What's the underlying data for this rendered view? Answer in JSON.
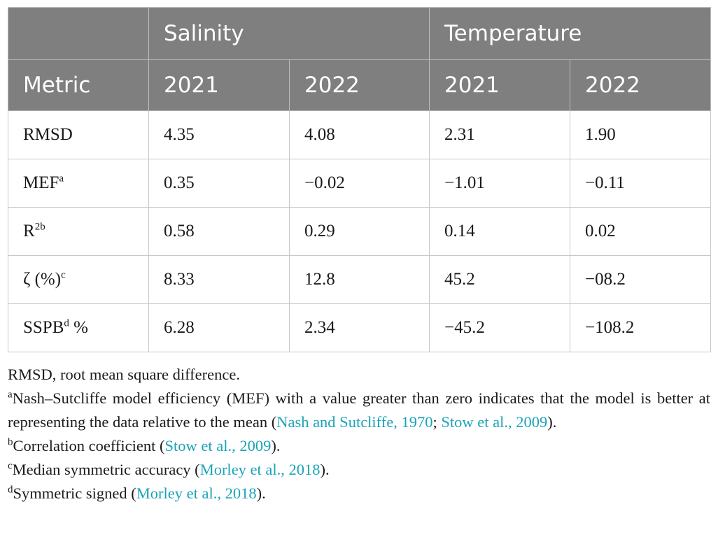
{
  "table": {
    "group_headers": [
      "Salinity",
      "Temperature"
    ],
    "column_headers": [
      "Metric",
      "2021",
      "2022",
      "2021",
      "2022"
    ],
    "rows": [
      {
        "metric": "RMSD",
        "sup": "",
        "suffix": "",
        "values": [
          "4.35",
          "4.08",
          "2.31",
          "1.90"
        ]
      },
      {
        "metric": "MEF",
        "sup": "a",
        "suffix": "",
        "values": [
          "0.35",
          "−0.02",
          "−1.01",
          "−0.11"
        ]
      },
      {
        "metric": "R",
        "sup": "2b",
        "suffix": "",
        "values": [
          "0.58",
          "0.29",
          "0.14",
          "0.02"
        ]
      },
      {
        "metric": "ζ (%)",
        "sup": "c",
        "suffix": "",
        "values": [
          "8.33",
          "12.8",
          "45.2",
          "−08.2"
        ]
      },
      {
        "metric": "SSPB",
        "sup": "d",
        "suffix": " %",
        "values": [
          "6.28",
          "2.34",
          "−45.2",
          "−108.2"
        ]
      }
    ]
  },
  "footnotes": {
    "rmsd": "RMSD, root mean square difference.",
    "a": {
      "mark": "a",
      "text": "Nash–Sutcliffe model efficiency (MEF) with a value greater than zero indicates that the model is better at representing the data relative to the mean (",
      "ref1": "Nash and Sutcliffe, 1970",
      "sep": "; ",
      "ref2": "Stow et al., 2009",
      "end": ")."
    },
    "b": {
      "mark": "b",
      "text": "Correlation coefficient (",
      "ref": "Stow et al., 2009",
      "end": ")."
    },
    "c": {
      "mark": "c",
      "text": "Median symmetric accuracy (",
      "ref": "Morley et al., 2018",
      "end": ")."
    },
    "d": {
      "mark": "d",
      "text": "Symmetric signed (",
      "ref": "Morley et al., 2018",
      "end": ")."
    }
  },
  "colors": {
    "header_bg": "#7f7f7f",
    "link": "#1aa3b8"
  }
}
